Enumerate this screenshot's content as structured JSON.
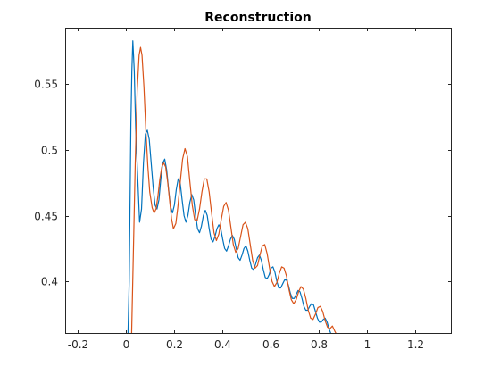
{
  "chart_data": {
    "type": "line",
    "title": "Reconstruction",
    "xlabel": "",
    "ylabel": "",
    "xlim": [
      -0.25,
      1.35
    ],
    "ylim": [
      0.36,
      0.593
    ],
    "x_ticks": [
      -0.2,
      0,
      0.2,
      0.4,
      0.6,
      0.8,
      1,
      1.2
    ],
    "x_tick_labels": [
      "-0.2",
      "0",
      "0.2",
      "0.4",
      "0.6",
      "0.8",
      "1",
      "1.2"
    ],
    "y_ticks": [
      0.4,
      0.45,
      0.5,
      0.55
    ],
    "y_tick_labels": [
      "0.4",
      "0.45",
      "0.5",
      "0.55"
    ],
    "grid": false,
    "box": true,
    "series": [
      {
        "color": "#0072BD",
        "points": [
          [
            0.01,
            0.36
          ],
          [
            0.015,
            0.4
          ],
          [
            0.022,
            0.52
          ],
          [
            0.026,
            0.56
          ],
          [
            0.03,
            0.583
          ],
          [
            0.036,
            0.56
          ],
          [
            0.042,
            0.515
          ],
          [
            0.05,
            0.48
          ],
          [
            0.058,
            0.445
          ],
          [
            0.066,
            0.455
          ],
          [
            0.074,
            0.49
          ],
          [
            0.082,
            0.512
          ],
          [
            0.09,
            0.515
          ],
          [
            0.098,
            0.508
          ],
          [
            0.106,
            0.49
          ],
          [
            0.114,
            0.472
          ],
          [
            0.122,
            0.458
          ],
          [
            0.13,
            0.455
          ],
          [
            0.138,
            0.462
          ],
          [
            0.146,
            0.478
          ],
          [
            0.154,
            0.49
          ],
          [
            0.162,
            0.493
          ],
          [
            0.17,
            0.485
          ],
          [
            0.178,
            0.47
          ],
          [
            0.186,
            0.457
          ],
          [
            0.194,
            0.452
          ],
          [
            0.202,
            0.458
          ],
          [
            0.21,
            0.47
          ],
          [
            0.218,
            0.478
          ],
          [
            0.226,
            0.475
          ],
          [
            0.234,
            0.462
          ],
          [
            0.242,
            0.45
          ],
          [
            0.25,
            0.445
          ],
          [
            0.258,
            0.45
          ],
          [
            0.266,
            0.46
          ],
          [
            0.274,
            0.466
          ],
          [
            0.282,
            0.462
          ],
          [
            0.29,
            0.45
          ],
          [
            0.298,
            0.44
          ],
          [
            0.306,
            0.437
          ],
          [
            0.314,
            0.442
          ],
          [
            0.322,
            0.45
          ],
          [
            0.33,
            0.454
          ],
          [
            0.338,
            0.45
          ],
          [
            0.346,
            0.44
          ],
          [
            0.354,
            0.432
          ],
          [
            0.362,
            0.43
          ],
          [
            0.37,
            0.434
          ],
          [
            0.378,
            0.44
          ],
          [
            0.386,
            0.443
          ],
          [
            0.394,
            0.44
          ],
          [
            0.402,
            0.432
          ],
          [
            0.41,
            0.425
          ],
          [
            0.418,
            0.423
          ],
          [
            0.426,
            0.427
          ],
          [
            0.434,
            0.432
          ],
          [
            0.442,
            0.435
          ],
          [
            0.45,
            0.432
          ],
          [
            0.458,
            0.425
          ],
          [
            0.466,
            0.418
          ],
          [
            0.474,
            0.416
          ],
          [
            0.482,
            0.42
          ],
          [
            0.49,
            0.425
          ],
          [
            0.498,
            0.427
          ],
          [
            0.506,
            0.423
          ],
          [
            0.514,
            0.416
          ],
          [
            0.522,
            0.41
          ],
          [
            0.53,
            0.409
          ],
          [
            0.538,
            0.413
          ],
          [
            0.546,
            0.418
          ],
          [
            0.554,
            0.42
          ],
          [
            0.562,
            0.416
          ],
          [
            0.57,
            0.409
          ],
          [
            0.578,
            0.403
          ],
          [
            0.586,
            0.402
          ],
          [
            0.594,
            0.405
          ],
          [
            0.602,
            0.41
          ],
          [
            0.61,
            0.411
          ],
          [
            0.618,
            0.407
          ],
          [
            0.626,
            0.4
          ],
          [
            0.634,
            0.395
          ],
          [
            0.642,
            0.395
          ],
          [
            0.65,
            0.398
          ],
          [
            0.658,
            0.401
          ],
          [
            0.666,
            0.401
          ],
          [
            0.674,
            0.397
          ],
          [
            0.682,
            0.391
          ],
          [
            0.69,
            0.387
          ],
          [
            0.698,
            0.387
          ],
          [
            0.706,
            0.39
          ],
          [
            0.714,
            0.393
          ],
          [
            0.722,
            0.392
          ],
          [
            0.73,
            0.387
          ],
          [
            0.738,
            0.381
          ],
          [
            0.746,
            0.378
          ],
          [
            0.754,
            0.378
          ],
          [
            0.762,
            0.381
          ],
          [
            0.77,
            0.383
          ],
          [
            0.778,
            0.382
          ],
          [
            0.786,
            0.377
          ],
          [
            0.794,
            0.372
          ],
          [
            0.802,
            0.369
          ],
          [
            0.81,
            0.369
          ],
          [
            0.818,
            0.371
          ],
          [
            0.826,
            0.372
          ],
          [
            0.834,
            0.369
          ],
          [
            0.842,
            0.364
          ],
          [
            0.85,
            0.36
          ]
        ]
      },
      {
        "color": "#D95319",
        "points": [
          [
            0.025,
            0.36
          ],
          [
            0.032,
            0.42
          ],
          [
            0.04,
            0.49
          ],
          [
            0.048,
            0.545
          ],
          [
            0.056,
            0.572
          ],
          [
            0.062,
            0.578
          ],
          [
            0.068,
            0.572
          ],
          [
            0.076,
            0.548
          ],
          [
            0.084,
            0.515
          ],
          [
            0.092,
            0.488
          ],
          [
            0.1,
            0.468
          ],
          [
            0.11,
            0.456
          ],
          [
            0.118,
            0.452
          ],
          [
            0.126,
            0.455
          ],
          [
            0.134,
            0.465
          ],
          [
            0.142,
            0.478
          ],
          [
            0.15,
            0.487
          ],
          [
            0.158,
            0.49
          ],
          [
            0.166,
            0.487
          ],
          [
            0.174,
            0.476
          ],
          [
            0.182,
            0.462
          ],
          [
            0.19,
            0.448
          ],
          [
            0.198,
            0.44
          ],
          [
            0.208,
            0.444
          ],
          [
            0.216,
            0.456
          ],
          [
            0.226,
            0.475
          ],
          [
            0.236,
            0.493
          ],
          [
            0.246,
            0.501
          ],
          [
            0.256,
            0.495
          ],
          [
            0.266,
            0.476
          ],
          [
            0.276,
            0.458
          ],
          [
            0.286,
            0.447
          ],
          [
            0.296,
            0.446
          ],
          [
            0.306,
            0.455
          ],
          [
            0.316,
            0.468
          ],
          [
            0.326,
            0.478
          ],
          [
            0.336,
            0.478
          ],
          [
            0.346,
            0.468
          ],
          [
            0.356,
            0.452
          ],
          [
            0.366,
            0.437
          ],
          [
            0.376,
            0.431
          ],
          [
            0.386,
            0.436
          ],
          [
            0.396,
            0.447
          ],
          [
            0.406,
            0.457
          ],
          [
            0.416,
            0.46
          ],
          [
            0.426,
            0.454
          ],
          [
            0.436,
            0.441
          ],
          [
            0.446,
            0.428
          ],
          [
            0.456,
            0.422
          ],
          [
            0.466,
            0.425
          ],
          [
            0.476,
            0.434
          ],
          [
            0.486,
            0.443
          ],
          [
            0.496,
            0.445
          ],
          [
            0.506,
            0.44
          ],
          [
            0.516,
            0.428
          ],
          [
            0.526,
            0.416
          ],
          [
            0.536,
            0.41
          ],
          [
            0.546,
            0.412
          ],
          [
            0.556,
            0.42
          ],
          [
            0.566,
            0.427
          ],
          [
            0.576,
            0.428
          ],
          [
            0.586,
            0.421
          ],
          [
            0.596,
            0.41
          ],
          [
            0.606,
            0.4
          ],
          [
            0.616,
            0.396
          ],
          [
            0.626,
            0.399
          ],
          [
            0.636,
            0.406
          ],
          [
            0.646,
            0.411
          ],
          [
            0.656,
            0.41
          ],
          [
            0.666,
            0.404
          ],
          [
            0.676,
            0.394
          ],
          [
            0.686,
            0.386
          ],
          [
            0.696,
            0.383
          ],
          [
            0.706,
            0.386
          ],
          [
            0.716,
            0.392
          ],
          [
            0.726,
            0.396
          ],
          [
            0.736,
            0.394
          ],
          [
            0.746,
            0.387
          ],
          [
            0.756,
            0.378
          ],
          [
            0.766,
            0.372
          ],
          [
            0.776,
            0.371
          ],
          [
            0.786,
            0.375
          ],
          [
            0.796,
            0.38
          ],
          [
            0.806,
            0.381
          ],
          [
            0.816,
            0.377
          ],
          [
            0.826,
            0.37
          ],
          [
            0.836,
            0.365
          ],
          [
            0.846,
            0.364
          ],
          [
            0.856,
            0.366
          ],
          [
            0.866,
            0.362
          ],
          [
            0.872,
            0.36
          ]
        ]
      }
    ]
  }
}
